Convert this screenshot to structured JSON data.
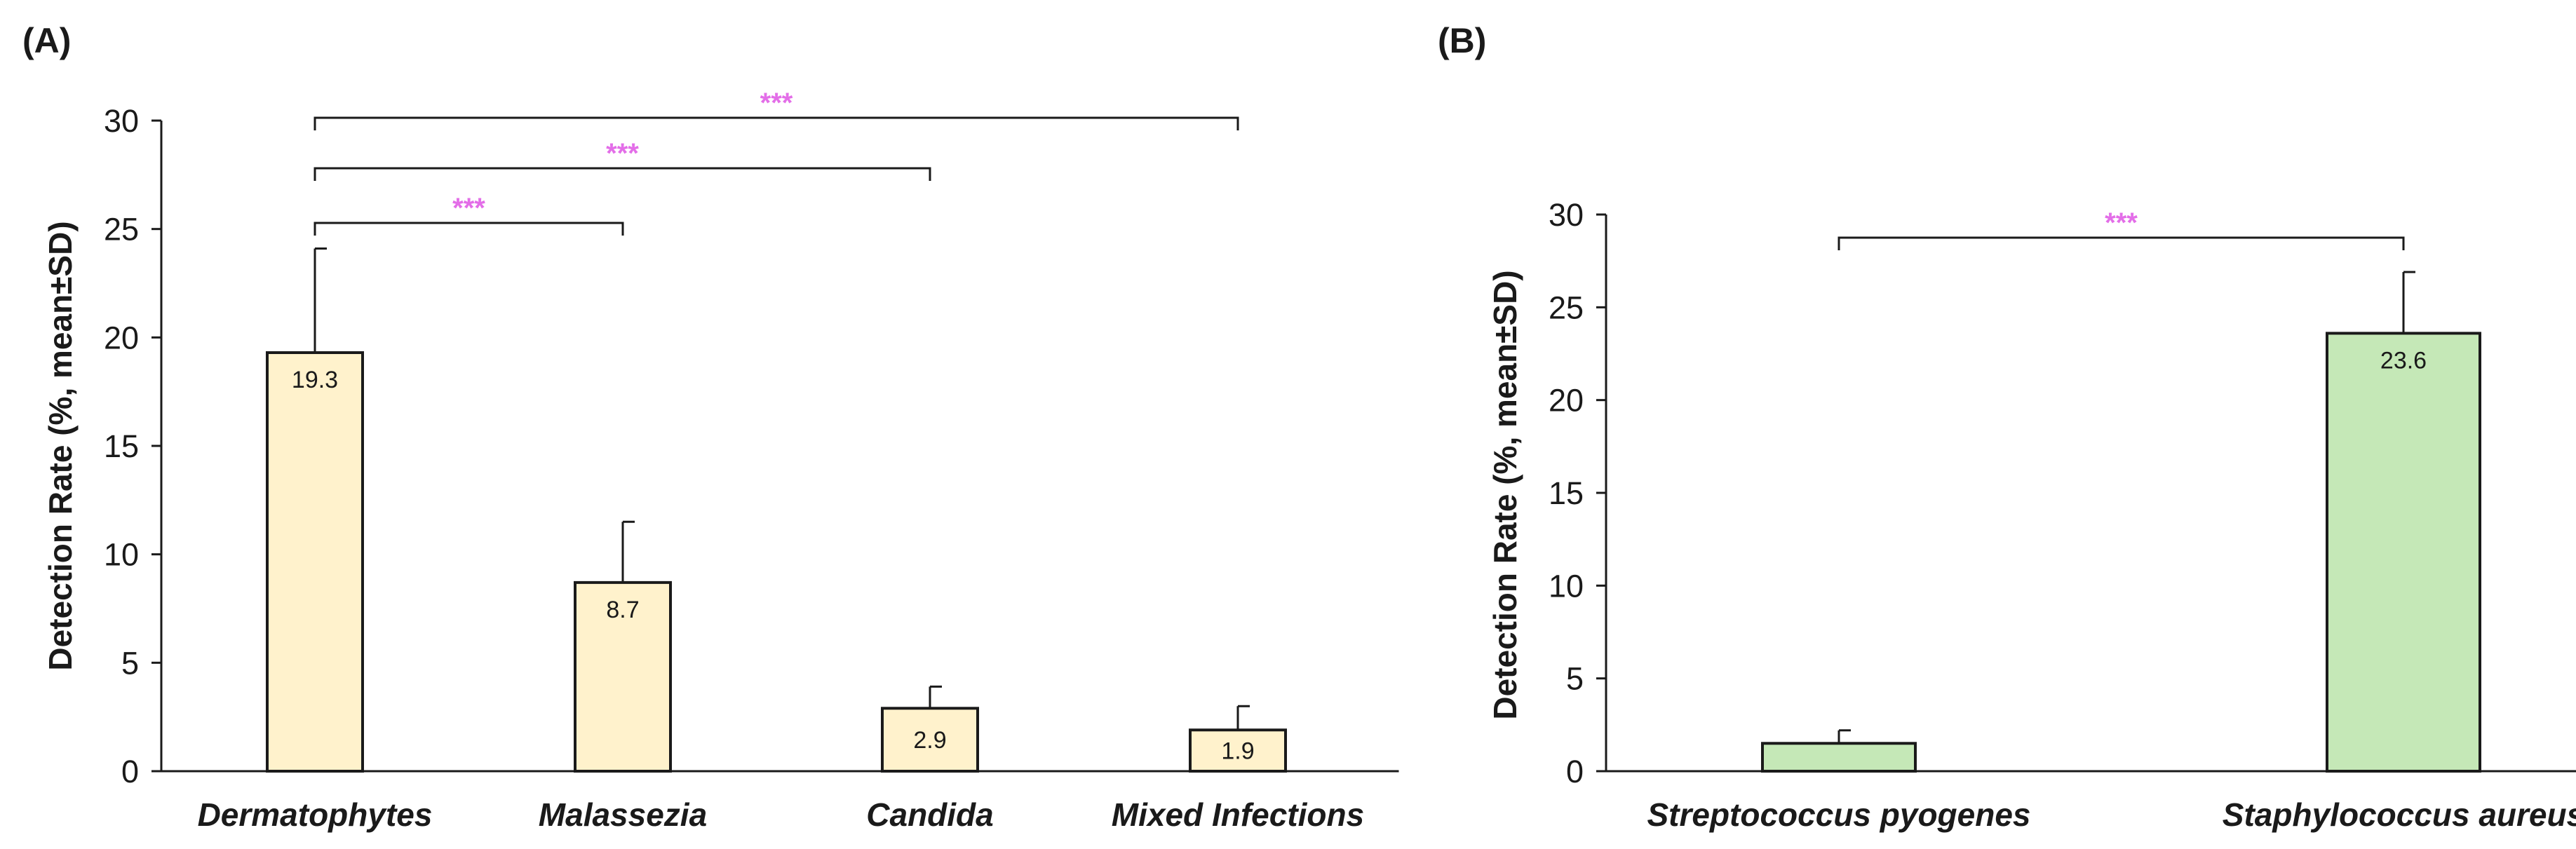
{
  "chart_data": [
    {
      "panel_label": "(A)",
      "type": "bar",
      "categories": [
        "Dermatophytes",
        "Malassezia",
        "Candida",
        "Mixed Infections"
      ],
      "values": [
        19.3,
        8.7,
        2.9,
        1.9
      ],
      "value_labels": [
        "19.3",
        "8.7",
        "2.9",
        "1.9"
      ],
      "errors": [
        4.8,
        2.8,
        1.0,
        1.1
      ],
      "ylabel": "Detection Rate (%,  mean±SD)",
      "ylim": [
        0,
        30
      ],
      "yticks": [
        0,
        5,
        10,
        15,
        20,
        25,
        30
      ],
      "bar_color": "#fff2cc",
      "significance": [
        {
          "from": 0,
          "to": 1,
          "label": "***",
          "level": 1
        },
        {
          "from": 0,
          "to": 2,
          "label": "***",
          "level": 2
        },
        {
          "from": 0,
          "to": 3,
          "label": "***",
          "level": 3
        }
      ]
    },
    {
      "panel_label": "(B)",
      "type": "bar",
      "categories": [
        "Streptococcus pyogenes",
        "Staphylococcus aureus"
      ],
      "values": [
        1.5,
        23.6
      ],
      "value_labels": [
        "",
        "23.6"
      ],
      "errors": [
        0.7,
        3.3
      ],
      "ylabel": "Detection Rate (%,  mean±SD)",
      "ylim": [
        0,
        30
      ],
      "yticks": [
        0,
        5,
        10,
        15,
        20,
        25,
        30
      ],
      "bar_color": "#c5e8b7",
      "significance": [
        {
          "from": 0,
          "to": 1,
          "label": "***",
          "level": 1
        }
      ]
    }
  ],
  "colors": {
    "axis": "#1a1a1a",
    "significance": "#e36ee8",
    "bar_outline": "#1a1a1a"
  }
}
